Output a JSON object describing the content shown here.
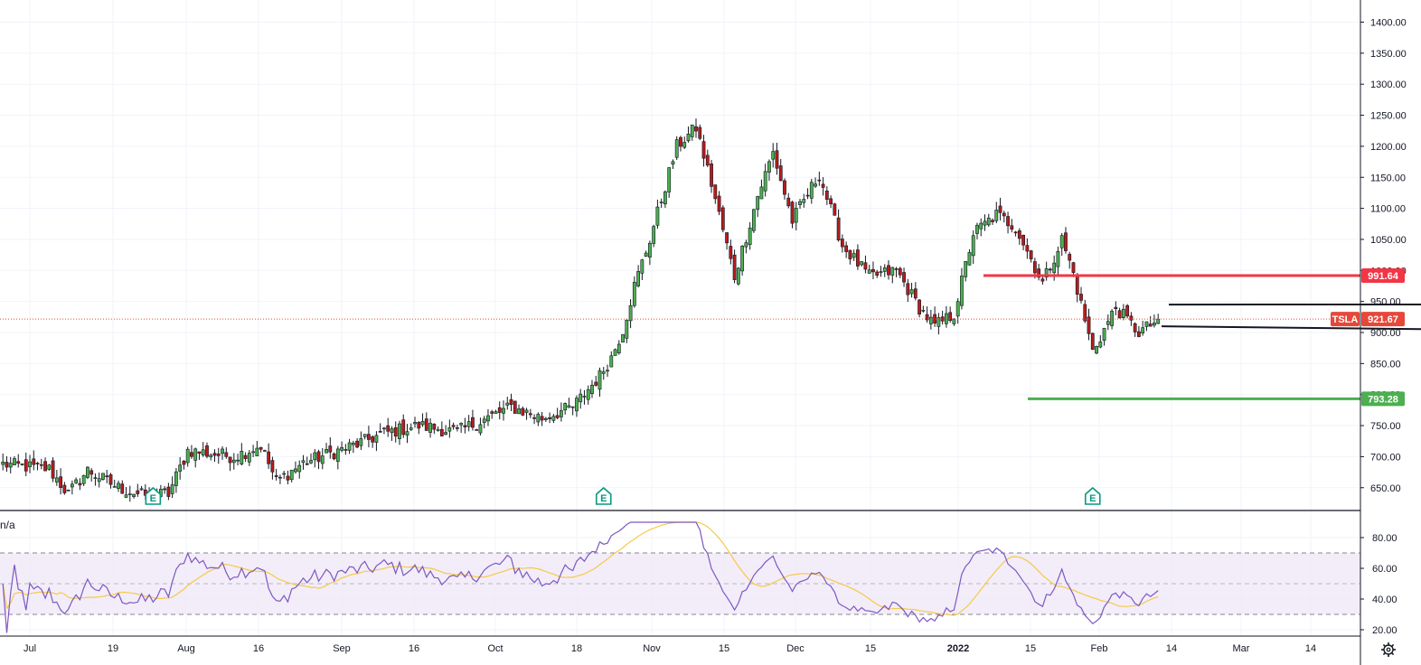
{
  "ticker": "TSLA",
  "indicator_value": "n/a",
  "earnings_marker": "E",
  "colors": {
    "up": "#26a69a",
    "up_body": "#4caf50",
    "down": "#ef5350",
    "down_body": "#b71c1c",
    "resistance": "#f23645",
    "support": "#4caf50",
    "rsi": "#7e57c2",
    "rsi_ma": "#f7c948",
    "rsi_band": "#ede7f6",
    "ticker_tag": "#e5483a",
    "grid": "#f0f3fa"
  },
  "chart_data": [
    {
      "type": "candlestick",
      "title": "",
      "price_axis": {
        "ticks": [
          "1400.00",
          "1350.00",
          "1300.00",
          "1250.00",
          "1200.00",
          "1150.00",
          "1100.00",
          "1050.00",
          "1000.00",
          "950.00",
          "900.00",
          "850.00",
          "800.00",
          "750.00",
          "700.00",
          "650.00"
        ],
        "range": [
          610,
          1428
        ]
      },
      "time_axis": {
        "ticks": [
          "Jul",
          "19",
          "Aug",
          "16",
          "Sep",
          "16",
          "Oct",
          "18",
          "Nov",
          "15",
          "Dec",
          "15",
          "2022",
          "15",
          "Feb",
          "14",
          "Mar",
          "14"
        ],
        "bold_tick": "2022"
      },
      "levels": [
        {
          "label": "991.64",
          "value": 991.64,
          "color": "resistance"
        },
        {
          "label": "793.28",
          "value": 793.28,
          "color": "support"
        },
        {
          "label": "921.67",
          "value": 921.67,
          "color": "ticker_tag",
          "style": "dotted",
          "tag": "TSLA"
        }
      ],
      "triangle": {
        "upper": [
          [
            947,
            946
          ],
          [
            969,
            945
          ]
        ],
        "lower": [
          [
            889,
            870
          ],
          [
            969,
            910
          ]
        ]
      },
      "earnings_days": [
        39,
        156,
        283
      ],
      "anchors": [
        [
          0,
          688
        ],
        [
          12,
          680
        ],
        [
          17,
          640
        ],
        [
          22,
          678
        ],
        [
          30,
          650
        ],
        [
          36,
          638
        ],
        [
          43,
          640
        ],
        [
          48,
          710
        ],
        [
          60,
          700
        ],
        [
          67,
          718
        ],
        [
          71,
          660
        ],
        [
          78,
          690
        ],
        [
          85,
          705
        ],
        [
          92,
          720
        ],
        [
          99,
          738
        ],
        [
          108,
          750
        ],
        [
          118,
          740
        ],
        [
          125,
          760
        ],
        [
          132,
          780
        ],
        [
          140,
          762
        ],
        [
          148,
          780
        ],
        [
          155,
          830
        ],
        [
          158,
          860
        ],
        [
          161,
          905
        ],
        [
          164,
          975
        ],
        [
          168,
          1050
        ],
        [
          175,
          1200
        ],
        [
          180,
          1230
        ],
        [
          184,
          1140
        ],
        [
          190,
          990
        ],
        [
          196,
          1120
        ],
        [
          200,
          1190
        ],
        [
          205,
          1080
        ],
        [
          212,
          1155
        ],
        [
          218,
          1040
        ],
        [
          225,
          990
        ],
        [
          232,
          1000
        ],
        [
          238,
          940
        ],
        [
          242,
          910
        ],
        [
          247,
          930
        ],
        [
          252,
          1060
        ],
        [
          258,
          1090
        ],
        [
          263,
          1070
        ],
        [
          270,
          980
        ],
        [
          275,
          1050
        ],
        [
          278,
          995
        ],
        [
          283,
          870
        ],
        [
          289,
          940
        ],
        [
          295,
          900
        ],
        [
          300,
          920
        ]
      ],
      "note_anchors": "price path (day index, close) reconstructed from the candle shapes",
      "series": [
        {
          "name": "",
          "values": []
        }
      ]
    },
    {
      "type": "line",
      "title": "",
      "y_axis": {
        "ticks": [
          "80.00",
          "60.00",
          "40.00",
          "20.00"
        ],
        "range": [
          14,
          92
        ]
      },
      "bands": {
        "upper": 70,
        "middle": 50,
        "lower": 30
      },
      "series": [
        {
          "name": "",
          "color": "rsi",
          "values": []
        },
        {
          "name": "",
          "color": "rsi_ma",
          "values": []
        }
      ]
    }
  ]
}
